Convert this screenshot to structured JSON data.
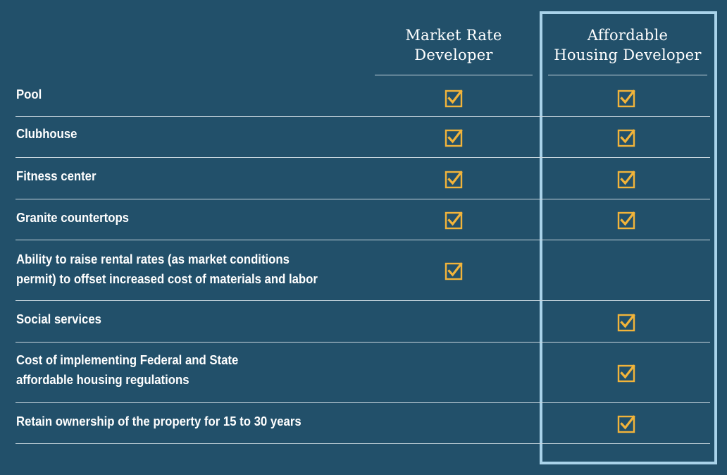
{
  "chart_data": {
    "type": "table",
    "columns": [
      "Market Rate\nDeveloper",
      "Affordable\nHousing Developer"
    ],
    "highlighted_column": "Affordable\nHousing Developer",
    "rows": [
      {
        "label": "Pool",
        "market_rate": true,
        "affordable": true
      },
      {
        "label": "Clubhouse",
        "market_rate": true,
        "affordable": true
      },
      {
        "label": "Fitness center",
        "market_rate": true,
        "affordable": true
      },
      {
        "label": "Granite countertops",
        "market_rate": true,
        "affordable": true
      },
      {
        "label": "Ability to raise rental rates (as market conditions\npermit) to offset increased cost of materials and labor",
        "market_rate": true,
        "affordable": false
      },
      {
        "label": "Social services",
        "market_rate": false,
        "affordable": true
      },
      {
        "label": "Cost of implementing Federal and State\naffordable housing regulations",
        "market_rate": false,
        "affordable": true
      },
      {
        "label": "Retain ownership of the property for 15 to 30 years",
        "market_rate": false,
        "affordable": true
      }
    ]
  },
  "colors": {
    "background": "#22506a",
    "checkmark": "#f2b43a",
    "highlight_border": "#a9d3ea",
    "rule": "#c8d6de",
    "text": "#ffffff"
  },
  "icons": {
    "check": "checked-box-icon"
  }
}
